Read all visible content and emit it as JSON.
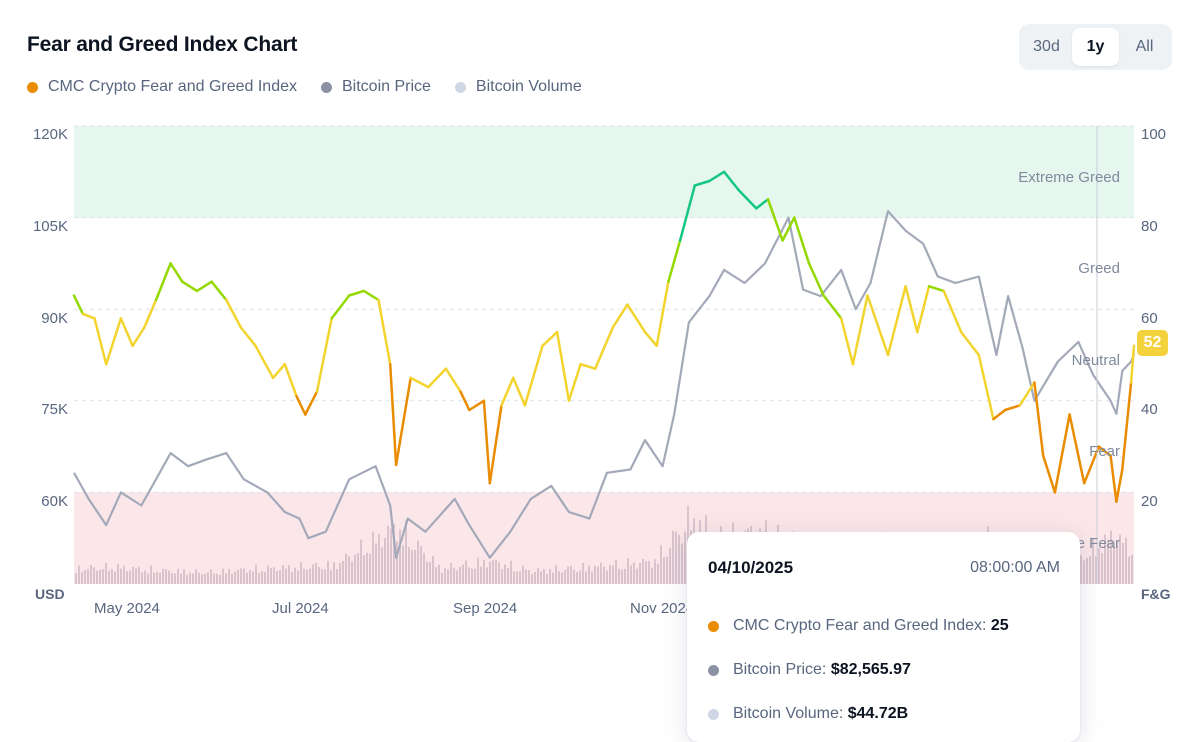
{
  "title": "Fear and Greed Index Chart",
  "range_buttons": [
    {
      "label": "30d",
      "active": false
    },
    {
      "label": "1y",
      "active": true
    },
    {
      "label": "All",
      "active": false
    }
  ],
  "legend": [
    {
      "label": "CMC Crypto Fear and Greed Index",
      "color": "#ea8c00"
    },
    {
      "label": "Bitcoin Price",
      "color": "#8c92a4"
    },
    {
      "label": "Bitcoin Volume",
      "color": "#cfd6e4"
    }
  ],
  "axis_units": {
    "left": "USD",
    "right": "F&G"
  },
  "zones": [
    {
      "label": "Extreme Greed",
      "from": 80,
      "to": 100,
      "color": "#e5f7ee"
    },
    {
      "label": "Greed"
    },
    {
      "label": "Neutral"
    },
    {
      "label": "Fear"
    },
    {
      "label": "Extreme Fear",
      "from": 0,
      "to": 20,
      "color": "#fbe7e9"
    }
  ],
  "current_value_badge": "52",
  "tooltip": {
    "date": "04/10/2025",
    "time": "08:00:00 AM",
    "rows": [
      {
        "label": "CMC Crypto Fear and Greed Index:",
        "value": "25",
        "color": "#ea8c00"
      },
      {
        "label": "Bitcoin Price:",
        "value": "$82,565.97",
        "color": "#8c92a4"
      },
      {
        "label": "Bitcoin Volume:",
        "value": "$44.72B",
        "color": "#cfd6e4"
      }
    ]
  },
  "chart_data": {
    "type": "line",
    "title": "Fear and Greed Index Chart",
    "x_tick_labels": [
      "May 2024",
      "Jul 2024",
      "Sep 2024",
      "Nov 2024"
    ],
    "x_range": [
      "2024-04-17",
      "2025-04-14"
    ],
    "left_axis": {
      "unit": "USD",
      "ticks": [
        "60K",
        "75K",
        "90K",
        "105K",
        "120K"
      ],
      "range": [
        50000,
        120000
      ]
    },
    "right_axis": {
      "unit": "F&G",
      "ticks": [
        "20",
        "40",
        "60",
        "80",
        "100"
      ],
      "range": [
        0,
        100
      ]
    },
    "series": [
      {
        "name": "CMC Crypto Fear and Greed Index",
        "axis": "right",
        "points": [
          [
            "2024-04-17",
            63
          ],
          [
            "2024-04-20",
            59
          ],
          [
            "2024-04-24",
            58
          ],
          [
            "2024-04-28",
            48
          ],
          [
            "2024-05-03",
            58
          ],
          [
            "2024-05-07",
            52
          ],
          [
            "2024-05-11",
            56
          ],
          [
            "2024-05-15",
            62
          ],
          [
            "2024-05-20",
            70
          ],
          [
            "2024-05-24",
            66
          ],
          [
            "2024-05-29",
            64
          ],
          [
            "2024-06-03",
            66
          ],
          [
            "2024-06-08",
            62
          ],
          [
            "2024-06-13",
            56
          ],
          [
            "2024-06-18",
            52
          ],
          [
            "2024-06-24",
            45
          ],
          [
            "2024-06-28",
            48
          ],
          [
            "2024-07-02",
            41
          ],
          [
            "2024-07-05",
            37
          ],
          [
            "2024-07-09",
            42
          ],
          [
            "2024-07-14",
            58
          ],
          [
            "2024-07-20",
            63
          ],
          [
            "2024-07-25",
            64
          ],
          [
            "2024-07-30",
            62
          ],
          [
            "2024-08-03",
            48
          ],
          [
            "2024-08-05",
            26
          ],
          [
            "2024-08-10",
            45
          ],
          [
            "2024-08-16",
            43
          ],
          [
            "2024-08-22",
            47
          ],
          [
            "2024-08-27",
            42
          ],
          [
            "2024-08-30",
            38
          ],
          [
            "2024-09-04",
            40
          ],
          [
            "2024-09-06",
            22
          ],
          [
            "2024-09-10",
            39
          ],
          [
            "2024-09-14",
            45
          ],
          [
            "2024-09-18",
            39
          ],
          [
            "2024-09-24",
            52
          ],
          [
            "2024-09-29",
            55
          ],
          [
            "2024-10-03",
            40
          ],
          [
            "2024-10-07",
            48
          ],
          [
            "2024-10-12",
            47
          ],
          [
            "2024-10-18",
            56
          ],
          [
            "2024-10-23",
            61
          ],
          [
            "2024-10-29",
            55
          ],
          [
            "2024-11-02",
            52
          ],
          [
            "2024-11-06",
            66
          ],
          [
            "2024-11-10",
            75
          ],
          [
            "2024-11-15",
            87
          ],
          [
            "2024-11-20",
            88
          ],
          [
            "2024-11-25",
            90
          ],
          [
            "2024-11-30",
            86
          ],
          [
            "2024-12-06",
            82
          ],
          [
            "2024-12-10",
            84
          ],
          [
            "2024-12-15",
            75
          ],
          [
            "2024-12-19",
            80
          ],
          [
            "2024-12-24",
            70
          ],
          [
            "2024-12-29",
            63
          ],
          [
            "2025-01-04",
            58
          ],
          [
            "2025-01-08",
            48
          ],
          [
            "2025-01-13",
            63
          ],
          [
            "2025-01-20",
            50
          ],
          [
            "2025-01-26",
            65
          ],
          [
            "2025-01-30",
            55
          ],
          [
            "2025-02-03",
            65
          ],
          [
            "2025-02-08",
            64
          ],
          [
            "2025-02-14",
            55
          ],
          [
            "2025-02-20",
            50
          ],
          [
            "2025-02-25",
            36
          ],
          [
            "2025-03-01",
            38
          ],
          [
            "2025-03-06",
            39
          ],
          [
            "2025-03-11",
            44
          ],
          [
            "2025-03-14",
            28
          ],
          [
            "2025-03-18",
            20
          ],
          [
            "2025-03-23",
            37
          ],
          [
            "2025-03-28",
            22
          ],
          [
            "2025-04-02",
            30
          ],
          [
            "2025-04-06",
            28
          ],
          [
            "2025-04-08",
            18
          ],
          [
            "2025-04-10",
            25
          ],
          [
            "2025-04-13",
            44
          ],
          [
            "2025-04-14",
            52
          ]
        ]
      },
      {
        "name": "Bitcoin Price",
        "axis": "left",
        "points": [
          [
            "2024-04-17",
            67000
          ],
          [
            "2024-04-22",
            63000
          ],
          [
            "2024-04-28",
            59000
          ],
          [
            "2024-05-03",
            64000
          ],
          [
            "2024-05-10",
            62000
          ],
          [
            "2024-05-15",
            66000
          ],
          [
            "2024-05-20",
            70000
          ],
          [
            "2024-05-26",
            68000
          ],
          [
            "2024-06-01",
            69000
          ],
          [
            "2024-06-08",
            70000
          ],
          [
            "2024-06-14",
            66000
          ],
          [
            "2024-06-22",
            64000
          ],
          [
            "2024-06-28",
            61000
          ],
          [
            "2024-07-03",
            60000
          ],
          [
            "2024-07-06",
            57000
          ],
          [
            "2024-07-12",
            58000
          ],
          [
            "2024-07-20",
            66000
          ],
          [
            "2024-07-29",
            68000
          ],
          [
            "2024-08-03",
            62000
          ],
          [
            "2024-08-05",
            54000
          ],
          [
            "2024-08-09",
            60000
          ],
          [
            "2024-08-15",
            58000
          ],
          [
            "2024-08-25",
            63000
          ],
          [
            "2024-08-30",
            59000
          ],
          [
            "2024-09-06",
            54000
          ],
          [
            "2024-09-13",
            58000
          ],
          [
            "2024-09-20",
            63000
          ],
          [
            "2024-09-27",
            65000
          ],
          [
            "2024-10-03",
            61000
          ],
          [
            "2024-10-10",
            60000
          ],
          [
            "2024-10-16",
            67000
          ],
          [
            "2024-10-24",
            67500
          ],
          [
            "2024-10-29",
            72000
          ],
          [
            "2024-11-04",
            68000
          ],
          [
            "2024-11-08",
            76000
          ],
          [
            "2024-11-13",
            90000
          ],
          [
            "2024-11-20",
            94000
          ],
          [
            "2024-11-25",
            98000
          ],
          [
            "2024-12-02",
            96000
          ],
          [
            "2024-12-09",
            99000
          ],
          [
            "2024-12-17",
            106000
          ],
          [
            "2024-12-22",
            95000
          ],
          [
            "2024-12-28",
            94000
          ],
          [
            "2025-01-04",
            98000
          ],
          [
            "2025-01-09",
            92000
          ],
          [
            "2025-01-14",
            96000
          ],
          [
            "2025-01-20",
            107000
          ],
          [
            "2025-01-26",
            104000
          ],
          [
            "2025-02-01",
            102000
          ],
          [
            "2025-02-06",
            97000
          ],
          [
            "2025-02-12",
            96000
          ],
          [
            "2025-02-20",
            97000
          ],
          [
            "2025-02-26",
            85000
          ],
          [
            "2025-03-02",
            94000
          ],
          [
            "2025-03-07",
            86000
          ],
          [
            "2025-03-11",
            78000
          ],
          [
            "2025-03-19",
            84000
          ],
          [
            "2025-03-26",
            87000
          ],
          [
            "2025-03-31",
            82000
          ],
          [
            "2025-04-06",
            78000
          ],
          [
            "2025-04-08",
            76000
          ],
          [
            "2025-04-10",
            82565.97
          ],
          [
            "2025-04-13",
            84000
          ],
          [
            "2025-04-14",
            85000
          ]
        ]
      },
      {
        "name": "Bitcoin Volume",
        "axis": "left",
        "note": "bars along the bottom band; relative heights only",
        "points": [
          [
            "2024-04-17",
            20
          ],
          [
            "2024-05-01",
            22
          ],
          [
            "2024-05-15",
            18
          ],
          [
            "2024-06-01",
            15
          ],
          [
            "2024-06-15",
            19
          ],
          [
            "2024-07-01",
            22
          ],
          [
            "2024-07-15",
            25
          ],
          [
            "2024-08-05",
            75
          ],
          [
            "2024-08-20",
            20
          ],
          [
            "2024-09-06",
            30
          ],
          [
            "2024-09-20",
            17
          ],
          [
            "2024-10-01",
            20
          ],
          [
            "2024-10-15",
            24
          ],
          [
            "2024-11-01",
            30
          ],
          [
            "2024-11-13",
            85
          ],
          [
            "2024-11-25",
            60
          ],
          [
            "2024-12-05",
            70
          ],
          [
            "2024-12-20",
            55
          ],
          [
            "2025-01-05",
            40
          ],
          [
            "2025-01-20",
            55
          ],
          [
            "2025-02-05",
            40
          ],
          [
            "2025-02-25",
            60
          ],
          [
            "2025-03-10",
            45
          ],
          [
            "2025-03-25",
            30
          ],
          [
            "2025-04-07",
            65
          ],
          [
            "2025-04-14",
            40
          ]
        ]
      }
    ]
  }
}
